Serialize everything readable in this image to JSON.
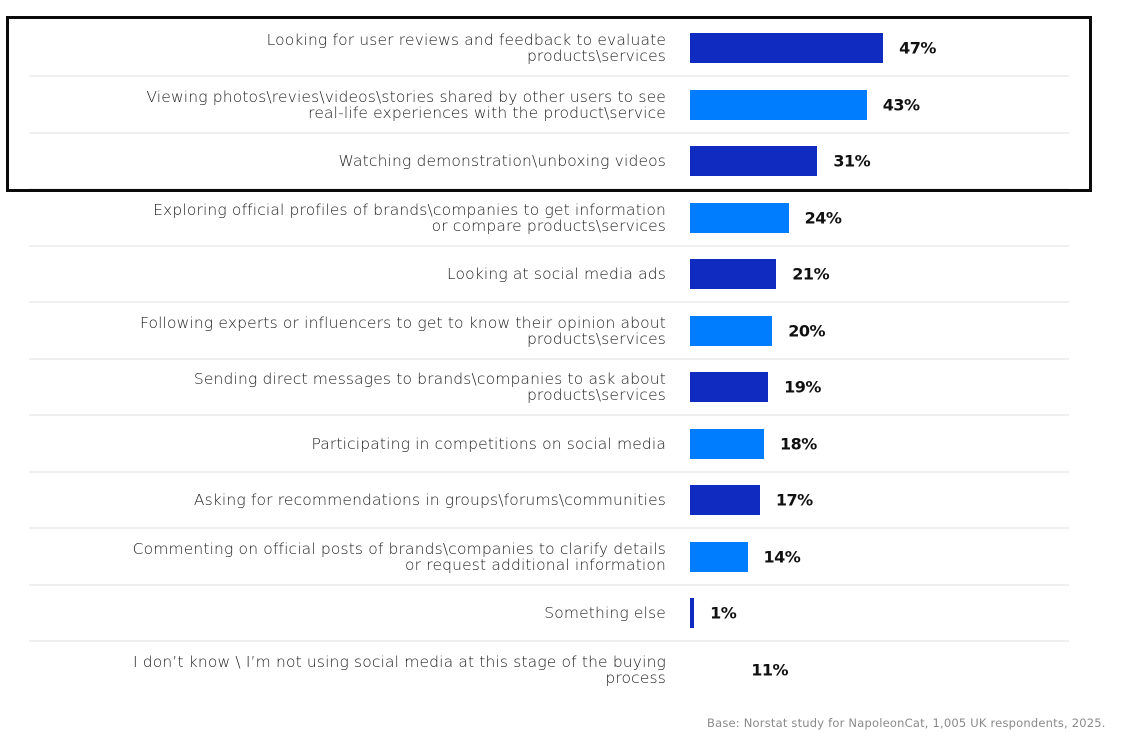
{
  "chart_data": {
    "type": "bar",
    "orientation": "horizontal",
    "title": "",
    "xlabel": "",
    "ylabel": "",
    "xlim": [
      0,
      100
    ],
    "grid": false,
    "unit": "%",
    "highlighted_rows": [
      0,
      1,
      2
    ],
    "categories": [
      "Looking for user reviews and feedback to evaluate products\\services",
      "Viewing photos\\revies\\videos\\stories shared by other users to see real-life experiences with the product\\service",
      "Watching demonstration\\unboxing videos",
      "Exploring official profiles of brands\\companies to get information or compare products\\services",
      "Looking at social media ads",
      "Following experts or influencers to get to know their opinion about products\\services",
      "Sending direct messages to brands\\companies to ask about products\\services",
      "Participating in competitions on social media",
      "Asking for recommendations in groups\\forums\\communities",
      "Commenting on official posts of brands\\companies to clarify details or request additional information",
      "Something else",
      "I don’t know \\ I’m not using social media at this stage of the buying process"
    ],
    "label_lines": [
      [
        "Looking for user reviews and feedback to evaluate",
        "products\\services"
      ],
      [
        "Viewing photos\\revies\\videos\\stories shared by other users to see",
        "real-life experiences with the product\\service"
      ],
      [
        "Watching demonstration\\unboxing videos"
      ],
      [
        "Exploring official profiles of brands\\companies to get information",
        "or compare products\\services"
      ],
      [
        "Looking at social media ads"
      ],
      [
        "Following experts or influencers to get to know their opinion about",
        "products\\services"
      ],
      [
        "Sending direct messages to brands\\companies to ask about",
        "products\\services"
      ],
      [
        "Participating in competitions on social media"
      ],
      [
        "Asking for recommendations in groups\\forums\\communities"
      ],
      [
        "Commenting on official posts of brands\\companies to clarify details",
        "or request additional information"
      ],
      [
        "Something else"
      ],
      [
        "I don’t know \\ I’m not using social media at this stage of the buying",
        "process"
      ]
    ],
    "values": [
      47,
      43,
      31,
      24,
      21,
      20,
      19,
      18,
      17,
      14,
      1,
      11
    ],
    "value_labels": [
      "47%",
      "43%",
      "31%",
      "24%",
      "21%",
      "20%",
      "19%",
      "18%",
      "17%",
      "14%",
      "1%",
      "11%"
    ],
    "bar_colors": [
      "#0f2bc0",
      "#007dff",
      "#0f2bc0",
      "#007dff",
      "#0f2bc0",
      "#007dff",
      "#0f2bc0",
      "#007dff",
      "#0f2bc0",
      "#007dff",
      "#0f2bc0",
      "#ffffff"
    ]
  },
  "footer": {
    "source": "Base: Norstat study for NapoleonCat, 1,005 UK respondents, 2025."
  },
  "colors": {
    "dark_blue": "#0f2bc0",
    "light_blue": "#007dff",
    "highlight_border": "#0a0a0a",
    "separator": "#f0f0f0",
    "footer_text": "#8a8a8a"
  }
}
